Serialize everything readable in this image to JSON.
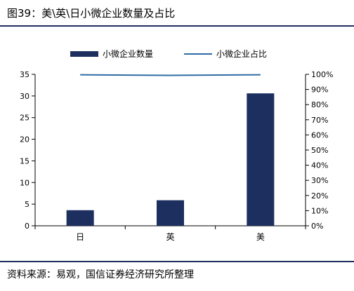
{
  "figure": {
    "title": "图39：美\\英\\日小微企业数量及占比",
    "source": "资料来源：易观，国信证券经济研究所整理"
  },
  "colors": {
    "bar": "#1c2f5f",
    "line": "#2e6da4",
    "axis": "#000000"
  },
  "chart_data": {
    "type": "bar",
    "categories": [
      "日",
      "英",
      "美"
    ],
    "series": [
      {
        "name": "小微企业数量",
        "type": "bar",
        "axis": "left",
        "values": [
          3.6,
          5.9,
          30.6
        ]
      },
      {
        "name": "小微企业占比",
        "type": "line",
        "axis": "right",
        "values": [
          99.7,
          99.3,
          99.7
        ]
      }
    ],
    "ylim": [
      0,
      35
    ],
    "yticks": [
      "0",
      "5",
      "10",
      "15",
      "20",
      "25",
      "30",
      "35"
    ],
    "y2lim": [
      0,
      100
    ],
    "y2ticks": [
      "0%",
      "10%",
      "20%",
      "30%",
      "40%",
      "50%",
      "60%",
      "70%",
      "80%",
      "90%",
      "100%"
    ],
    "legend_position": "top",
    "grid": false
  }
}
